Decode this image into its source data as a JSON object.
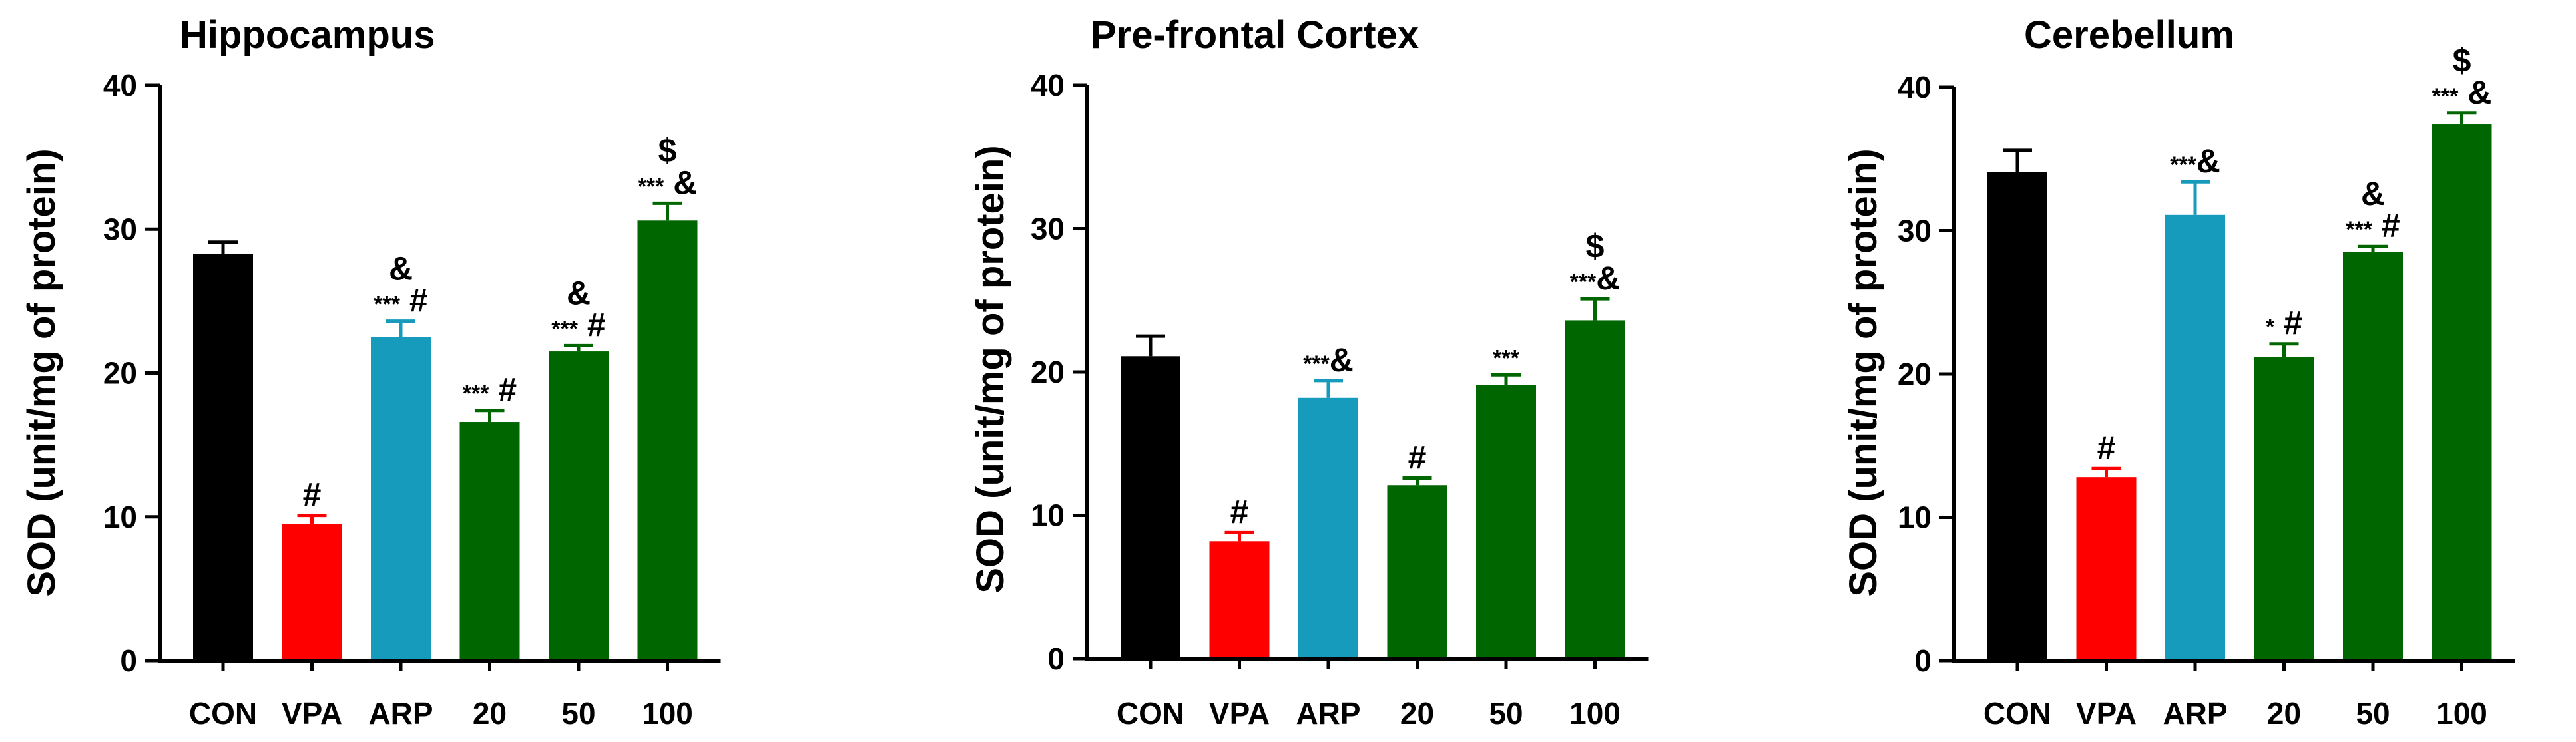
{
  "chart_data": [
    {
      "type": "bar",
      "title": "Hippocampus",
      "ylabel": "SOD (unit/mg of protein)",
      "xlabel": "",
      "ylim": [
        0,
        40
      ],
      "yticks": [
        "0",
        "10",
        "20",
        "30",
        "40"
      ],
      "categories": [
        "CON",
        "VPA",
        "ARP",
        "20",
        "50",
        "100"
      ],
      "values": [
        28.3,
        9.5,
        22.5,
        16.6,
        21.5,
        30.6
      ],
      "errors": [
        0.8,
        0.6,
        1.1,
        0.8,
        0.4,
        1.2
      ],
      "colors": [
        "#000000",
        "#ff0000",
        "#169bbd",
        "#006600",
        "#006600",
        "#006600"
      ],
      "annotations": [
        [],
        [
          "#"
        ],
        [
          "&",
          "*** #"
        ],
        [
          "*** #"
        ],
        [
          "&",
          "*** #"
        ],
        [
          "$",
          "*** &"
        ]
      ]
    },
    {
      "type": "bar",
      "title": "Pre-frontal Cortex",
      "ylabel": "SOD (unit/mg of protein)",
      "xlabel": "",
      "ylim": [
        0,
        40
      ],
      "yticks": [
        "0",
        "10",
        "20",
        "30",
        "40"
      ],
      "categories": [
        "CON",
        "VPA",
        "ARP",
        "20",
        "50",
        "100"
      ],
      "values": [
        21.1,
        8.2,
        18.2,
        12.1,
        19.1,
        23.6
      ],
      "errors": [
        1.4,
        0.6,
        1.2,
        0.5,
        0.7,
        1.5
      ],
      "colors": [
        "#000000",
        "#ff0000",
        "#169bbd",
        "#006600",
        "#006600",
        "#006600"
      ],
      "annotations": [
        [],
        [
          "#"
        ],
        [
          "***&"
        ],
        [
          "#"
        ],
        [
          "***"
        ],
        [
          "$",
          "***&"
        ]
      ]
    },
    {
      "type": "bar",
      "title": "Cerebellum",
      "ylabel": "SOD (unit/mg of protein)",
      "xlabel": "",
      "ylim": [
        0,
        40
      ],
      "yticks": [
        "0",
        "10",
        "20",
        "30",
        "40"
      ],
      "categories": [
        "CON",
        "VPA",
        "ARP",
        "20",
        "50",
        "100"
      ],
      "values": [
        34.1,
        12.8,
        31.1,
        21.2,
        28.5,
        37.4
      ],
      "errors": [
        1.5,
        0.6,
        2.3,
        0.9,
        0.4,
        0.8
      ],
      "colors": [
        "#000000",
        "#ff0000",
        "#169bbd",
        "#006600",
        "#006600",
        "#006600"
      ],
      "annotations": [
        [],
        [
          "#"
        ],
        [
          "***&"
        ],
        [
          "* #"
        ],
        [
          "&",
          "*** #"
        ],
        [
          "$",
          "*** &"
        ]
      ]
    }
  ]
}
